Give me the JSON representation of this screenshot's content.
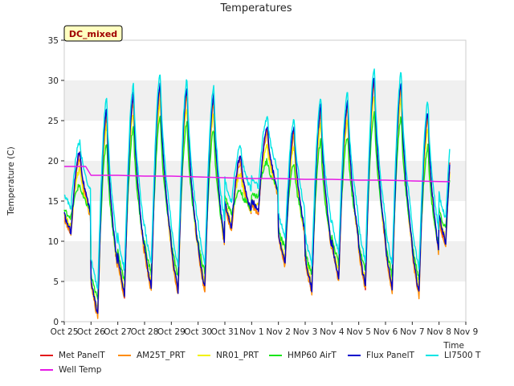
{
  "chart_data": {
    "type": "line",
    "title": "Temperatures",
    "xlabel": "Time",
    "ylabel": "Temperature (C)",
    "annotation": "DC_mixed",
    "ylim": [
      0,
      35
    ],
    "yticks": [
      0,
      5,
      10,
      15,
      20,
      25,
      30,
      35
    ],
    "xlim": [
      0,
      15
    ],
    "xticks": [
      0,
      1,
      2,
      3,
      4,
      5,
      6,
      7,
      8,
      9,
      10,
      11,
      12,
      13,
      14,
      15
    ],
    "xticklabels": [
      "Oct 25",
      "Oct 26",
      "Oct 27",
      "Oct 28",
      "Oct 29",
      "Oct 30",
      "Oct 31",
      "Nov 1",
      "Nov 2",
      "Nov 3",
      "Nov 4",
      "Nov 5",
      "Nov 6",
      "Nov 7",
      "Nov 8",
      "Nov 9"
    ],
    "grid": "horizontal bands",
    "legend_position": "bottom",
    "daily": {
      "days": [
        0,
        1,
        2,
        3,
        4,
        5,
        6,
        7,
        8,
        9,
        10,
        11,
        12,
        13,
        14
      ],
      "min": [
        11.0,
        0.8,
        3.2,
        4.0,
        3.6,
        4.0,
        11.5,
        13.6,
        7.2,
        3.8,
        5.3,
        4.3,
        3.8,
        3.4,
        9.6
      ],
      "max": [
        21.0,
        26.3,
        28.0,
        29.5,
        28.7,
        27.8,
        20.4,
        24.0,
        23.8,
        26.5,
        27.0,
        30.0,
        29.5,
        25.8,
        25.8
      ]
    },
    "series": [
      {
        "name": "Met PanelT",
        "color": "#e31a1c",
        "minOffset": 0.0,
        "maxOffset": 0.0
      },
      {
        "name": "AM25T_PRT",
        "color": "#ff8c00",
        "minOffset": -0.3,
        "maxOffset": -0.6
      },
      {
        "name": "NR01_PRT",
        "color": "#f2f200",
        "minOffset": 0.8,
        "maxOffset": -2.0
      },
      {
        "name": "HMP60 AirT",
        "color": "#19e619",
        "minOffset": 2.0,
        "maxOffset": -4.0
      },
      {
        "name": "Flux PanelT",
        "color": "#0000cc",
        "minOffset": 0.2,
        "maxOffset": 0.3
      },
      {
        "name": "LI7500 T",
        "color": "#00e5e5",
        "minOffset": 3.2,
        "maxOffset": 1.5
      },
      {
        "name": "Well Temp",
        "color": "#e619e6",
        "x": [
          0,
          0.8,
          1.0,
          2.0,
          3.0,
          4.0,
          5.0,
          6.0,
          7.0,
          8.0,
          9.0,
          10.0,
          11.0,
          12.0,
          13.0,
          14.4
        ],
        "y": [
          19.3,
          19.3,
          18.2,
          18.2,
          18.1,
          18.1,
          18.0,
          17.9,
          17.8,
          17.8,
          17.7,
          17.7,
          17.6,
          17.6,
          17.5,
          17.4
        ]
      }
    ]
  }
}
